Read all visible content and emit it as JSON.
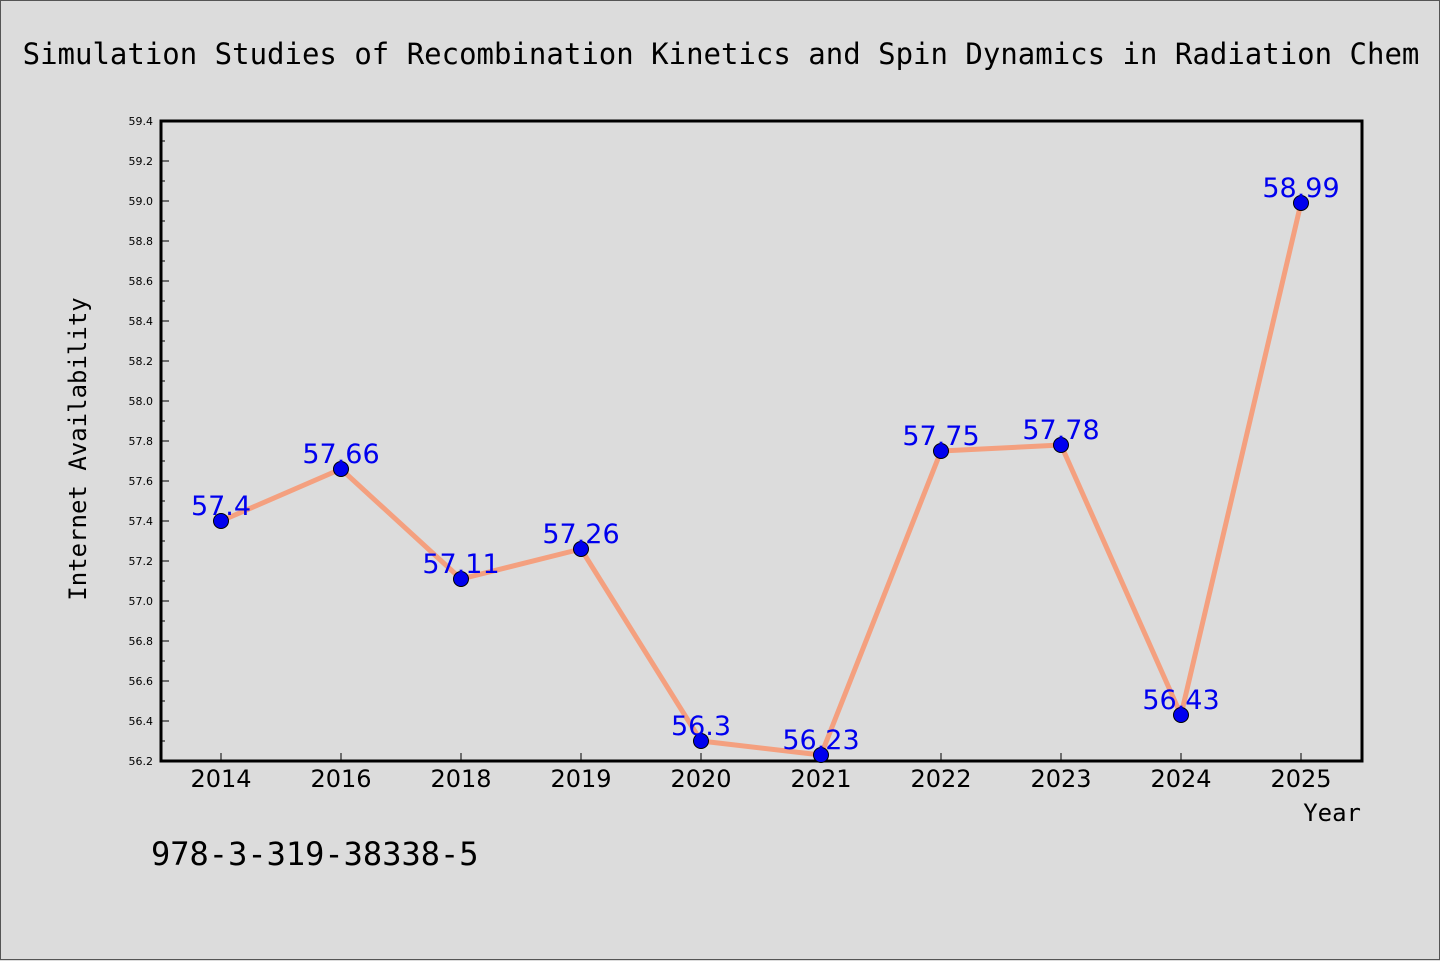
{
  "chart_data": {
    "type": "line",
    "title": "Simulation Studies of Recombination Kinetics and Spin Dynamics in Radiation Chem",
    "xlabel": "Year",
    "ylabel": "Internet Availability",
    "categories": [
      "2014",
      "2016",
      "2018",
      "2019",
      "2020",
      "2021",
      "2022",
      "2023",
      "2024",
      "2025"
    ],
    "values": [
      57.4,
      57.66,
      57.11,
      57.26,
      56.3,
      56.23,
      57.75,
      57.78,
      56.43,
      58.99
    ],
    "data_labels": [
      "57.4",
      "57.66",
      "57.11",
      "57.26",
      "56.3",
      "56.23",
      "57.75",
      "57.78",
      "56.43",
      "58.99"
    ],
    "ylim": [
      56.2,
      59.4
    ],
    "yticks": [
      "56.2",
      "56.4",
      "56.6",
      "56.8",
      "57.0",
      "57.2",
      "57.4",
      "57.6",
      "57.8",
      "58.0",
      "58.2",
      "58.4",
      "58.6",
      "58.8",
      "59.0",
      "59.2",
      "59.4"
    ],
    "grid": false,
    "line_color": "#f4a07f",
    "marker_color": "#0000ee",
    "label_color": "#0000ee"
  },
  "footer": {
    "isbn": "978-3-319-38338-5"
  }
}
